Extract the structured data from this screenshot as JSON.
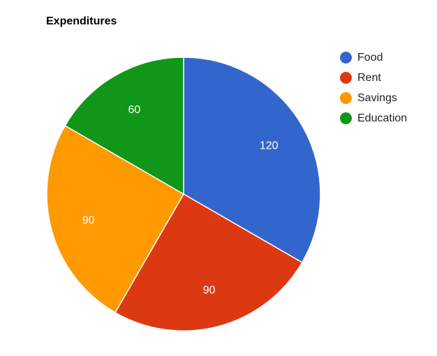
{
  "chart_data": {
    "type": "pie",
    "title": "Expenditures",
    "categories": [
      "Food",
      "Rent",
      "Savings",
      "Education"
    ],
    "values": [
      120,
      90,
      90,
      60
    ],
    "colors": [
      "#3366cc",
      "#dc3912",
      "#ff9900",
      "#109618"
    ],
    "legend_position": "right",
    "data_labels": [
      "120",
      "90",
      "90",
      "60"
    ]
  }
}
